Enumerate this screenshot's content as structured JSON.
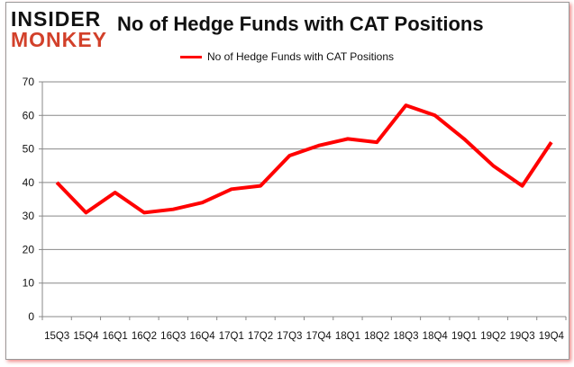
{
  "logo": {
    "line1": "INSIDER",
    "line2": "MONKEY"
  },
  "chart_data": {
    "type": "line",
    "title": "No of Hedge Funds with CAT Positions",
    "categories": [
      "15Q3",
      "15Q4",
      "16Q1",
      "16Q2",
      "16Q3",
      "16Q4",
      "17Q1",
      "17Q2",
      "17Q3",
      "17Q4",
      "18Q1",
      "18Q2",
      "18Q3",
      "18Q4",
      "19Q1",
      "19Q2",
      "19Q3",
      "19Q4"
    ],
    "series": [
      {
        "name": "No of Hedge Funds with CAT Positions",
        "color": "#ff0000",
        "values": [
          40,
          31,
          37,
          31,
          32,
          34,
          38,
          39,
          48,
          51,
          53,
          52,
          63,
          60,
          53,
          45,
          39,
          52
        ]
      }
    ],
    "ylim": [
      0,
      70
    ],
    "yticks": [
      0,
      10,
      20,
      30,
      40,
      50,
      60,
      70
    ],
    "grid": true,
    "legend": "top"
  }
}
